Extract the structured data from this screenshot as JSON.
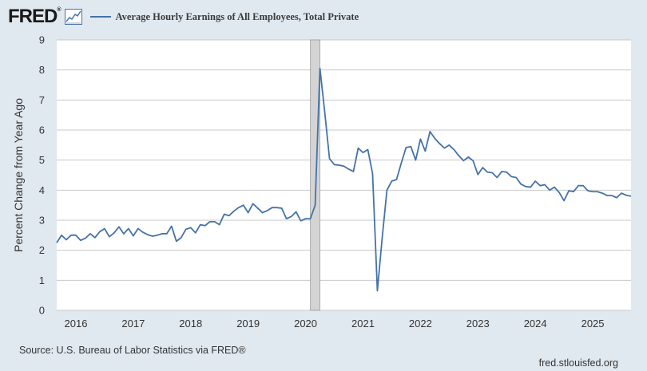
{
  "header": {
    "logo_text": "FRED",
    "logo_mark": "®",
    "legend_label": "Average Hourly Earnings of All Employees, Total Private"
  },
  "footer": {
    "source": "Source: U.S. Bureau of Labor Statistics via FRED®",
    "site": "fred.stlouisfed.org"
  },
  "colors": {
    "line": "#4572a7",
    "recession": "#d4d4d4",
    "background": "#e1e9f0",
    "plot": "#ffffff",
    "grid": "#c8c8c8"
  },
  "chart_data": {
    "type": "line",
    "title": "Average Hourly Earnings of All Employees, Total Private",
    "xlabel": "",
    "ylabel": "Percent Change from Year Ago",
    "ylim": [
      0,
      9
    ],
    "xlim": [
      "2015-09",
      "2025-09"
    ],
    "y_ticks": [
      0,
      1,
      2,
      3,
      4,
      5,
      6,
      7,
      8,
      9
    ],
    "x_ticks": [
      "2016",
      "2017",
      "2018",
      "2019",
      "2020",
      "2021",
      "2022",
      "2023",
      "2024",
      "2025"
    ],
    "grid": true,
    "legend": "top",
    "recession_shading": [
      {
        "start": "2020-02",
        "end": "2020-04"
      }
    ],
    "series": [
      {
        "name": "Average Hourly Earnings of All Employees, Total Private",
        "color": "#4572a7",
        "x": [
          "2015-09",
          "2015-10",
          "2015-11",
          "2015-12",
          "2016-01",
          "2016-02",
          "2016-03",
          "2016-04",
          "2016-05",
          "2016-06",
          "2016-07",
          "2016-08",
          "2016-09",
          "2016-10",
          "2016-11",
          "2016-12",
          "2017-01",
          "2017-02",
          "2017-03",
          "2017-04",
          "2017-05",
          "2017-06",
          "2017-07",
          "2017-08",
          "2017-09",
          "2017-10",
          "2017-11",
          "2017-12",
          "2018-01",
          "2018-02",
          "2018-03",
          "2018-04",
          "2018-05",
          "2018-06",
          "2018-07",
          "2018-08",
          "2018-09",
          "2018-10",
          "2018-11",
          "2018-12",
          "2019-01",
          "2019-02",
          "2019-03",
          "2019-04",
          "2019-05",
          "2019-06",
          "2019-07",
          "2019-08",
          "2019-09",
          "2019-10",
          "2019-11",
          "2019-12",
          "2020-01",
          "2020-02",
          "2020-03",
          "2020-04",
          "2020-05",
          "2020-06",
          "2020-07",
          "2020-08",
          "2020-09",
          "2020-10",
          "2020-11",
          "2020-12",
          "2021-01",
          "2021-02",
          "2021-03",
          "2021-04",
          "2021-05",
          "2021-06",
          "2021-07",
          "2021-08",
          "2021-09",
          "2021-10",
          "2021-11",
          "2021-12",
          "2022-01",
          "2022-02",
          "2022-03",
          "2022-04",
          "2022-05",
          "2022-06",
          "2022-07",
          "2022-08",
          "2022-09",
          "2022-10",
          "2022-11",
          "2022-12",
          "2023-01",
          "2023-02",
          "2023-03",
          "2023-04",
          "2023-05",
          "2023-06",
          "2023-07",
          "2023-08",
          "2023-09",
          "2023-10",
          "2023-11",
          "2023-12",
          "2024-01",
          "2024-02",
          "2024-03",
          "2024-04",
          "2024-05",
          "2024-06",
          "2024-07",
          "2024-08",
          "2024-09",
          "2024-10",
          "2024-11",
          "2024-12",
          "2025-01",
          "2025-02",
          "2025-03",
          "2025-04",
          "2025-05",
          "2025-06",
          "2025-07",
          "2025-08",
          "2025-09"
        ],
        "values": [
          2.25,
          2.5,
          2.35,
          2.5,
          2.5,
          2.33,
          2.4,
          2.55,
          2.42,
          2.62,
          2.72,
          2.45,
          2.58,
          2.78,
          2.55,
          2.72,
          2.48,
          2.72,
          2.6,
          2.52,
          2.47,
          2.5,
          2.55,
          2.55,
          2.8,
          2.3,
          2.42,
          2.7,
          2.75,
          2.58,
          2.85,
          2.82,
          2.95,
          2.95,
          2.85,
          3.2,
          3.15,
          3.3,
          3.42,
          3.5,
          3.25,
          3.55,
          3.4,
          3.25,
          3.32,
          3.42,
          3.42,
          3.4,
          3.05,
          3.12,
          3.28,
          2.98,
          3.05,
          3.05,
          3.5,
          8.05,
          6.6,
          5.05,
          4.85,
          4.83,
          4.8,
          4.7,
          4.62,
          5.4,
          5.25,
          5.35,
          4.55,
          0.65,
          2.4,
          4.0,
          4.3,
          4.35,
          4.9,
          5.42,
          5.45,
          5.0,
          5.7,
          5.3,
          5.95,
          5.72,
          5.55,
          5.4,
          5.5,
          5.35,
          5.15,
          4.98,
          5.1,
          4.98,
          4.52,
          4.75,
          4.6,
          4.58,
          4.42,
          4.62,
          4.6,
          4.45,
          4.42,
          4.2,
          4.12,
          4.1,
          4.3,
          4.15,
          4.18,
          4.0,
          4.1,
          3.92,
          3.65,
          3.98,
          3.95,
          4.15,
          4.15,
          3.98,
          3.95,
          3.95,
          3.9,
          3.82,
          3.82,
          3.75,
          3.9,
          3.83,
          3.8
        ]
      }
    ]
  }
}
